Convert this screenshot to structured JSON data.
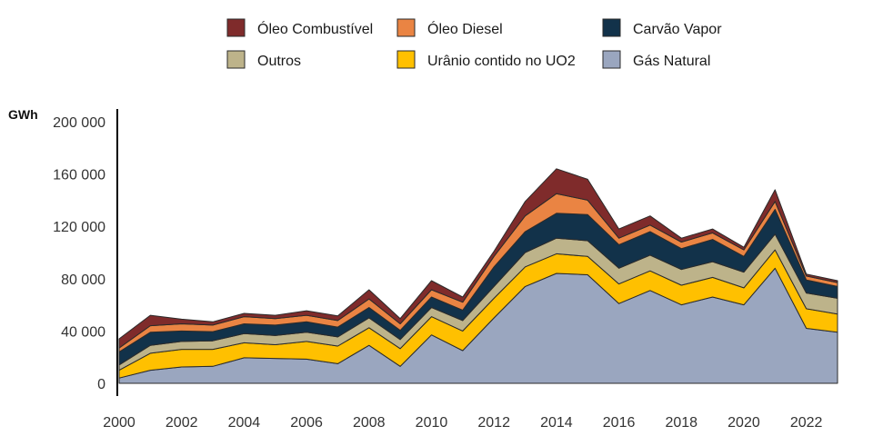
{
  "chart_data": {
    "type": "area",
    "stacked": true,
    "unit_label": "GWh",
    "x": [
      2000,
      2001,
      2002,
      2003,
      2004,
      2005,
      2006,
      2007,
      2008,
      2009,
      2010,
      2011,
      2012,
      2013,
      2014,
      2015,
      2016,
      2017,
      2018,
      2019,
      2020,
      2021,
      2022,
      2023
    ],
    "x_ticks": [
      "2000",
      "2002",
      "2004",
      "2006",
      "2008",
      "2010",
      "2012",
      "2014",
      "2016",
      "2018",
      "2020",
      "2022"
    ],
    "y_ticks": [
      "0",
      "40 000",
      "80 000",
      "120 000",
      "160 000",
      "200 000"
    ],
    "y_tick_values": [
      0,
      40000,
      80000,
      120000,
      160000,
      200000
    ],
    "ylim": [
      0,
      200000
    ],
    "xlim": [
      2000,
      2023
    ],
    "grid": false,
    "legend_position": "top",
    "series": [
      {
        "name": "Gás Natural",
        "color": "#9aa6bf",
        "values": [
          4000,
          10000,
          12500,
          13000,
          19500,
          19000,
          18500,
          15000,
          29000,
          13000,
          37000,
          25000,
          50000,
          74000,
          84000,
          83000,
          61000,
          71000,
          60000,
          66000,
          60000,
          88000,
          42000,
          39000
        ]
      },
      {
        "name": "Urânio contido no UO2",
        "color": "#ffc000",
        "values": [
          6000,
          13000,
          13500,
          13000,
          11500,
          10500,
          13500,
          13500,
          13500,
          13500,
          14000,
          15000,
          15000,
          15000,
          15000,
          14000,
          15000,
          15000,
          15000,
          15000,
          13000,
          14000,
          15000,
          14000
        ]
      },
      {
        "name": "Outros",
        "color": "#bdb38a",
        "values": [
          4000,
          6000,
          6000,
          6500,
          7000,
          7000,
          7000,
          7000,
          7500,
          7000,
          7000,
          8000,
          9000,
          11000,
          12000,
          12000,
          12000,
          12000,
          12000,
          12000,
          12000,
          12000,
          12000,
          12000
        ]
      },
      {
        "name": "Carvão Vapor",
        "color": "#12324a",
        "values": [
          10000,
          10000,
          8000,
          7000,
          7500,
          8000,
          8000,
          7500,
          8000,
          7000,
          8000,
          8000,
          15000,
          16000,
          19000,
          20000,
          18000,
          18000,
          16000,
          17000,
          12000,
          19000,
          10000,
          9000
        ]
      },
      {
        "name": "Óleo Diesel",
        "color": "#ea8443",
        "values": [
          3000,
          5000,
          5500,
          5000,
          5500,
          5000,
          5000,
          5000,
          6500,
          5000,
          5500,
          6000,
          8000,
          12000,
          15000,
          11000,
          5000,
          5000,
          5000,
          5000,
          5000,
          6000,
          3000,
          3000
        ]
      },
      {
        "name": "Óleo Combustível",
        "color": "#7f2b2b",
        "values": [
          7000,
          8000,
          3500,
          2500,
          2500,
          2500,
          3500,
          3500,
          7000,
          4000,
          7000,
          4000,
          4000,
          11000,
          19000,
          16000,
          7000,
          7000,
          3000,
          3000,
          2000,
          9000,
          1500,
          1500
        ]
      }
    ],
    "legend_order": [
      "Óleo Combustível",
      "Óleo Diesel",
      "Carvão Vapor",
      "Outros",
      "Urânio contido no UO2",
      "Gás Natural"
    ]
  }
}
